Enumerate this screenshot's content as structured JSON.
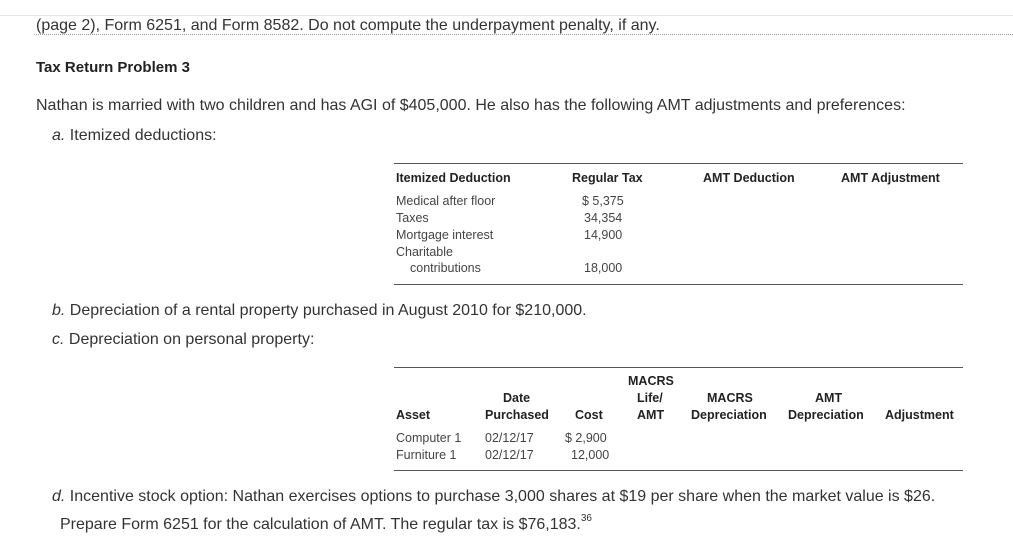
{
  "top_line": "(page 2), Form 6251, and Form 8582. Do not compute the underpayment penalty, if any.",
  "heading": "Tax Return Problem 3",
  "intro": "Nathan is married with two children and has AGI of $405,000. He also has the following AMT adjustments and preferences:",
  "items": {
    "a_letter": "a.",
    "a_text": "Itemized deductions:",
    "b_letter": "b.",
    "b_text": "Depreciation of a rental property purchased in August 2010 for $210,000.",
    "c_letter": "c.",
    "c_text": "Depreciation on personal property:",
    "d_letter": "d.",
    "d_text": "Incentive stock option: Nathan exercises options to purchase 3,000 shares at $19 per share when the market value is $26.",
    "final_text": "Prepare Form 6251 for the calculation of AMT. The regular tax is $76,183.",
    "footnote": "36"
  },
  "table1": {
    "headers": [
      "Itemized Deduction",
      "Regular Tax",
      "AMT Deduction",
      "AMT Adjustment"
    ],
    "rows": [
      [
        "Medical after floor",
        "$ 5,375"
      ],
      [
        "Taxes",
        "34,354"
      ],
      [
        "Mortgage interest",
        "14,900"
      ],
      [
        "Charitable",
        ""
      ],
      [
        "contributions",
        "18,000"
      ]
    ]
  },
  "table2": {
    "headers": {
      "macrs_top": "MACRS",
      "date_top": "Date",
      "life": "Life/",
      "macrs2_top": "MACRS",
      "amt_top": "AMT",
      "asset": "Asset",
      "purchased": "Purchased",
      "cost": "Cost",
      "amt": "AMT",
      "depreciation1": "Depreciation",
      "depreciation2": "Depreciation",
      "adjustment": "Adjustment"
    },
    "rows": [
      [
        "Computer 1",
        "02/12/17",
        "$ 2,900"
      ],
      [
        "Furniture 1",
        "02/12/17",
        "12,000"
      ]
    ]
  }
}
